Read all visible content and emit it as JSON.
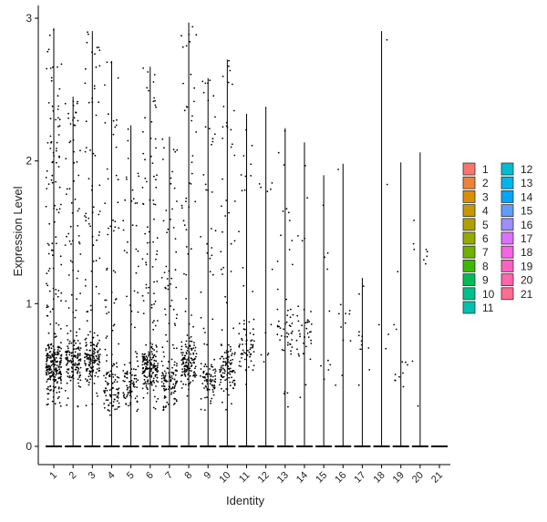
{
  "chart_data": {
    "type": "violin",
    "xlabel": "Identity",
    "ylabel": "Expression Level",
    "ylim": [
      -0.12,
      3.04
    ],
    "yticks": [
      0,
      1,
      2,
      3
    ],
    "categories": [
      "1",
      "2",
      "3",
      "4",
      "5",
      "6",
      "7",
      "8",
      "9",
      "10",
      "11",
      "12",
      "13",
      "14",
      "15",
      "16",
      "17",
      "18",
      "19",
      "20",
      "21"
    ],
    "max_values": [
      2.93,
      2.45,
      2.91,
      2.7,
      2.25,
      2.66,
      2.17,
      2.97,
      2.58,
      2.71,
      2.33,
      2.38,
      2.23,
      2.13,
      1.9,
      1.98,
      1.18,
      2.91,
      1.99,
      2.06,
      0.0
    ],
    "points_per_group": [
      320,
      190,
      190,
      130,
      110,
      230,
      150,
      170,
      110,
      130,
      70,
      12,
      55,
      40,
      10,
      12,
      12,
      5,
      12,
      10,
      0
    ],
    "point_band_center": [
      0.55,
      0.6,
      0.6,
      0.4,
      0.45,
      0.55,
      0.45,
      0.6,
      0.45,
      0.55,
      0.7,
      1.8,
      0.8,
      0.8,
      0.6,
      0.9,
      0.7,
      0.8,
      0.5,
      1.4,
      0
    ],
    "legend": {
      "position": "right",
      "entries": [
        {
          "label": "1",
          "color": "#F8766D"
        },
        {
          "label": "2",
          "color": "#EC8239"
        },
        {
          "label": "3",
          "color": "#DB8E00"
        },
        {
          "label": "4",
          "color": "#C79800"
        },
        {
          "label": "5",
          "color": "#AFA100"
        },
        {
          "label": "6",
          "color": "#93AA00"
        },
        {
          "label": "7",
          "color": "#6FB000"
        },
        {
          "label": "8",
          "color": "#3BB800"
        },
        {
          "label": "9",
          "color": "#00BC56"
        },
        {
          "label": "10",
          "color": "#00C08B"
        },
        {
          "label": "11",
          "color": "#00C0AF"
        },
        {
          "label": "12",
          "color": "#00BDD0"
        },
        {
          "label": "13",
          "color": "#00B5EE"
        },
        {
          "label": "14",
          "color": "#00A5FF"
        },
        {
          "label": "15",
          "color": "#619CFF"
        },
        {
          "label": "16",
          "color": "#9F8CFF"
        },
        {
          "label": "17",
          "color": "#DB72FB"
        },
        {
          "label": "18",
          "color": "#F564E3"
        },
        {
          "label": "19",
          "color": "#FF61C3"
        },
        {
          "label": "20",
          "color": "#FF65A9"
        },
        {
          "label": "21",
          "color": "#FF6C91"
        }
      ]
    },
    "grid": false
  }
}
